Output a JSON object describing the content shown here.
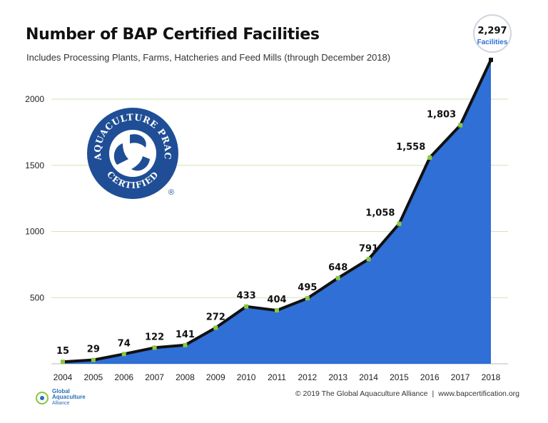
{
  "title": "Number of BAP Certified Facilities",
  "subtitle": "Includes Processing Plants, Farms, Hatcheries and Feed Mills (through December 2018)",
  "callout": {
    "value": "2,297",
    "label": "Facilities"
  },
  "logo": {
    "ring_text": "BEST AQUACULTURE PRACTICES",
    "bottom_text": "CERTIFIED",
    "registered": "®"
  },
  "footer": {
    "org_logo_text": [
      "Global",
      "Aquaculture",
      "Alliance"
    ],
    "copyright": "© 2019 The Global Aquaculture Alliance",
    "website": "www.bapcertification.org"
  },
  "colors": {
    "area": "#2f6fd6",
    "line": "#111111",
    "marker": "#8cc63f",
    "grid": "#cde6b4",
    "logo": "#1f4e96"
  },
  "chart_data": {
    "type": "area",
    "title": "Number of BAP Certified Facilities",
    "subtitle": "Includes Processing Plants, Farms, Hatcheries and Feed Mills (through December 2018)",
    "xlabel": "",
    "ylabel": "",
    "x": [
      "2004",
      "2005",
      "2006",
      "2007",
      "2008",
      "2009",
      "2010",
      "2011",
      "2012",
      "2013",
      "2014",
      "2015",
      "2016",
      "2017",
      "2018"
    ],
    "values": [
      15,
      29,
      74,
      122,
      141,
      272,
      433,
      404,
      495,
      648,
      791,
      1058,
      1558,
      1803,
      2297
    ],
    "data_labels": [
      "15",
      "29",
      "74",
      "122",
      "141",
      "272",
      "433",
      "404",
      "495",
      "648",
      "791",
      "1,058",
      "1,558",
      "1,803",
      ""
    ],
    "yticks": [
      500,
      1000,
      1500,
      2000
    ],
    "ylim": [
      0,
      2350
    ],
    "grid": true,
    "legend": "none"
  }
}
